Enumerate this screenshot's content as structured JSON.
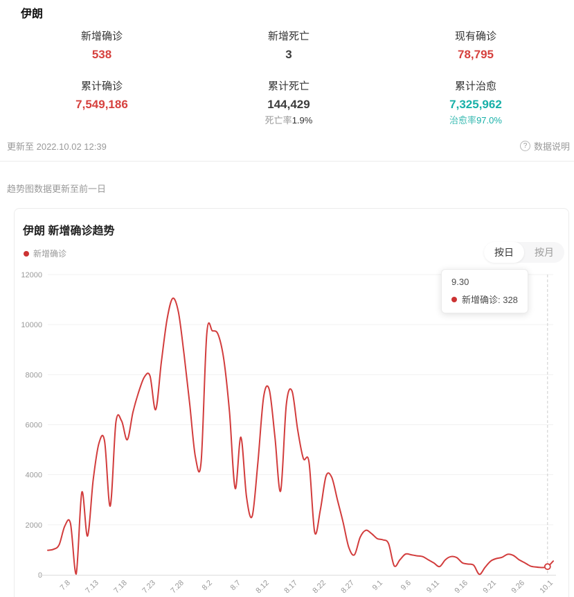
{
  "page_title": "伊朗",
  "stats": [
    {
      "label": "新增确诊",
      "value": "538"
    },
    {
      "label": "新增死亡",
      "value": "3"
    },
    {
      "label": "现有确诊",
      "value": "78,795"
    },
    {
      "label": "累计确诊",
      "value": "7,549,186"
    },
    {
      "label": "累计死亡",
      "value": "144,429",
      "sub_label": "死亡率",
      "sub_value": "1.9%"
    },
    {
      "label": "累计治愈",
      "value": "7,325,962",
      "sub_label": "治愈率",
      "sub_value": "97.0%"
    }
  ],
  "meta": {
    "updated_text": "更新至 2022.10.02 12:39",
    "help_icon": "?",
    "data_note_label": "数据说明"
  },
  "trend_note": "趋势图数据更新至前一日",
  "card": {
    "title": "伊朗 新增确诊趋势",
    "legend_label": "新增确诊",
    "toggle_day": "按日",
    "toggle_month": "按月",
    "toggle_selected": "按日"
  },
  "tooltip": {
    "date": "9.30",
    "series_text": "新增确诊: 328"
  },
  "colors": {
    "accent_red": "#d6413e",
    "teal": "#17b0a8",
    "line": "#d23c3c",
    "grid": "#f1f1f1",
    "axis": "#dcdcdc",
    "crosshair": "#cccccc",
    "tick_text": "#999999"
  },
  "chart_data": {
    "type": "line",
    "title": "伊朗 新增确诊趋势",
    "series_name": "新增确诊",
    "smooth": true,
    "grid": true,
    "legend_position": "top-left",
    "ylim": [
      0,
      12000
    ],
    "y_ticks": [
      0,
      2000,
      4000,
      6000,
      8000,
      10000,
      12000
    ],
    "x_tick_labels": [
      "7.8",
      "7.13",
      "7.18",
      "7.23",
      "7.28",
      "8.2",
      "8.7",
      "8.12",
      "8.17",
      "8.22",
      "8.27",
      "9.1",
      "9.6",
      "9.11",
      "9.16",
      "9.21",
      "9.26",
      "10.1"
    ],
    "x": [
      "7.4",
      "7.5",
      "7.6",
      "7.7",
      "7.8",
      "7.9",
      "7.10",
      "7.11",
      "7.12",
      "7.13",
      "7.14",
      "7.15",
      "7.16",
      "7.17",
      "7.18",
      "7.19",
      "7.20",
      "7.21",
      "7.22",
      "7.23",
      "7.24",
      "7.25",
      "7.26",
      "7.27",
      "7.28",
      "7.29",
      "7.30",
      "7.31",
      "8.1",
      "8.2",
      "8.3",
      "8.4",
      "8.5",
      "8.6",
      "8.7",
      "8.8",
      "8.9",
      "8.10",
      "8.11",
      "8.12",
      "8.13",
      "8.14",
      "8.15",
      "8.16",
      "8.17",
      "8.18",
      "8.19",
      "8.20",
      "8.21",
      "8.22",
      "8.23",
      "8.24",
      "8.25",
      "8.26",
      "8.27",
      "8.28",
      "8.29",
      "8.30",
      "8.31",
      "9.1",
      "9.2",
      "9.3",
      "9.4",
      "9.5",
      "9.6",
      "9.7",
      "9.8",
      "9.9",
      "9.10",
      "9.11",
      "9.12",
      "9.13",
      "9.14",
      "9.15",
      "9.16",
      "9.17",
      "9.18",
      "9.19",
      "9.20",
      "9.21",
      "9.22",
      "9.23",
      "9.24",
      "9.25",
      "9.26",
      "9.27",
      "9.28",
      "9.29",
      "9.30",
      "10.1"
    ],
    "values": [
      980,
      1020,
      1200,
      1950,
      2050,
      30,
      3300,
      1550,
      3800,
      5250,
      5350,
      2750,
      6100,
      6150,
      5400,
      6500,
      7300,
      7900,
      7950,
      6600,
      8500,
      10200,
      11050,
      10500,
      8800,
      6800,
      4700,
      4520,
      9650,
      9750,
      9600,
      8600,
      6500,
      3450,
      5500,
      3100,
      2350,
      4500,
      7100,
      7400,
      5500,
      3350,
      6800,
      7350,
      5800,
      4650,
      4500,
      1700,
      2600,
      3950,
      3900,
      3000,
      2100,
      1100,
      800,
      1500,
      1780,
      1650,
      1450,
      1400,
      1250,
      360,
      600,
      830,
      800,
      760,
      730,
      600,
      470,
      330,
      600,
      730,
      690,
      480,
      430,
      380,
      20,
      300,
      550,
      650,
      700,
      820,
      770,
      600,
      480,
      350,
      310,
      290,
      328,
      550
    ],
    "highlight": {
      "x": "9.30",
      "value": 328
    }
  }
}
